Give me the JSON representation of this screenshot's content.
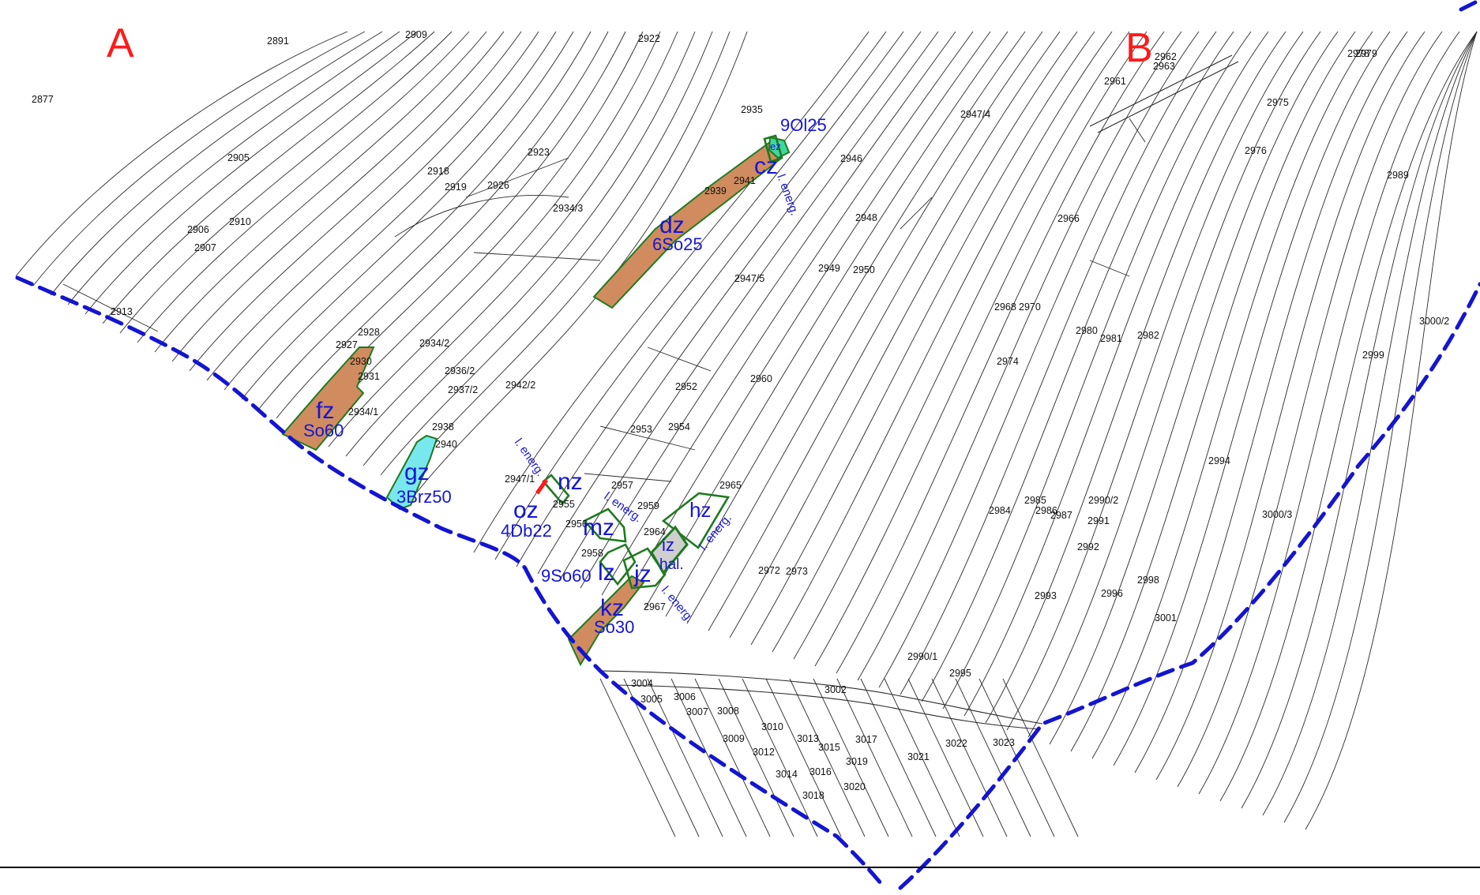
{
  "corner_labels": {
    "a": "A",
    "b": "B"
  },
  "parcels": [
    "2877",
    "2891",
    "2909",
    "2922",
    "2962",
    "2963",
    "2961",
    "2978",
    "2979",
    "2975",
    "2947/4",
    "2935",
    "2946",
    "2976",
    "2989",
    "2905",
    "2923",
    "2918",
    "2919",
    "2926",
    "2939",
    "2941",
    "2934/3",
    "2906",
    "2910",
    "2907",
    "2948",
    "2966",
    "2949",
    "2950",
    "2947/5",
    "2913",
    "2968",
    "2970",
    "3000/2",
    "2928",
    "2927",
    "2930",
    "2931",
    "2934/2",
    "2936/2",
    "2937/2",
    "2942/2",
    "2980",
    "2981",
    "2982",
    "2974",
    "2999",
    "2952",
    "2960",
    "2934/1",
    "2953",
    "2954",
    "2938",
    "2940",
    "2947/1",
    "2957",
    "2959",
    "2965",
    "2955",
    "2956",
    "2964",
    "2958",
    "2967",
    "2972",
    "2973",
    "2994",
    "2984",
    "2985",
    "2986",
    "2987",
    "2990/2",
    "2991",
    "3000/3",
    "2992",
    "2998",
    "2993",
    "2996",
    "3001",
    "2990/1",
    "2995",
    "3004",
    "3005",
    "3006",
    "3007",
    "3008",
    "3002",
    "3009",
    "3010",
    "3012",
    "3013",
    "3015",
    "3017",
    "3019",
    "3014",
    "3016",
    "3018",
    "3020",
    "3021",
    "3022",
    "3023"
  ],
  "zones": {
    "cz": "cz",
    "code_9Ol25": "9Ol25",
    "small_ez": "ez",
    "dz": "dz",
    "dz_code": "6So25",
    "fz": "fz",
    "fz_code": "So60",
    "gz": "gz",
    "gz_code": "3Brz50",
    "nz": "nz",
    "oz": "oz",
    "oz_code": "4Db22",
    "mz": "mz",
    "hz": "hz",
    "iz": "iz",
    "iz_code": "hal.",
    "lz": "lz",
    "lz_code": "9So60",
    "jz": "jz",
    "kz": "kz",
    "kz_code": "So30"
  },
  "energ_labels": [
    "l. energ.",
    "l. energ.",
    "l. energ.",
    "l. energ.",
    "l. energ."
  ],
  "colors": {
    "boundary": "#1414d2",
    "brown_zone": "#d08c5e",
    "cyan_zone": "#78e8ee",
    "green_outline": "#1f7a1f",
    "zone_text": "#1515d8",
    "corner_text": "#ff1a1a"
  }
}
